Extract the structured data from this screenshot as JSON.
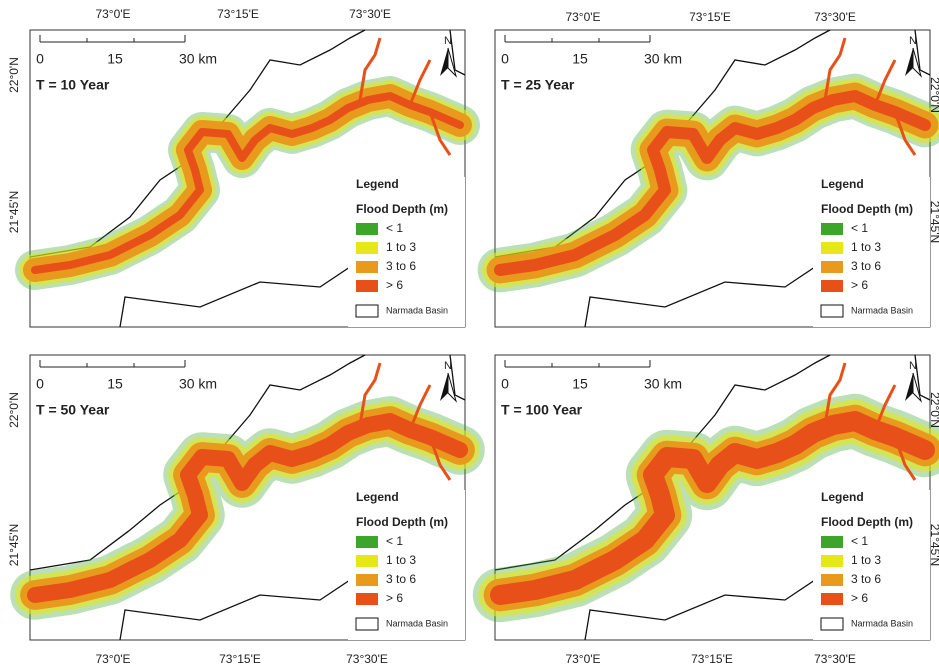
{
  "panels": [
    {
      "title": "T = 10 Year"
    },
    {
      "title": "T = 25 Year"
    },
    {
      "title": "T = 50 Year"
    },
    {
      "title": "T = 100 Year"
    }
  ],
  "scale_bar": {
    "labels": [
      "0",
      "15",
      "30 km"
    ]
  },
  "north": "N",
  "legend": {
    "title": "Legend",
    "subtitle": "Flood Depth (m)",
    "items": [
      {
        "label": "< 1",
        "color": "#3da62a"
      },
      {
        "label": "1 to 3",
        "color": "#e6e619"
      },
      {
        "label": "3 to 6",
        "color": "#e89a1c"
      },
      {
        "label": "> 6",
        "color": "#e8501a"
      }
    ],
    "basin": "Narmada Basin"
  },
  "coords": {
    "lon": [
      "73°0'E",
      "73°15'E",
      "73°30'E"
    ],
    "lat": [
      "22°0'N",
      "21°45'N"
    ]
  }
}
